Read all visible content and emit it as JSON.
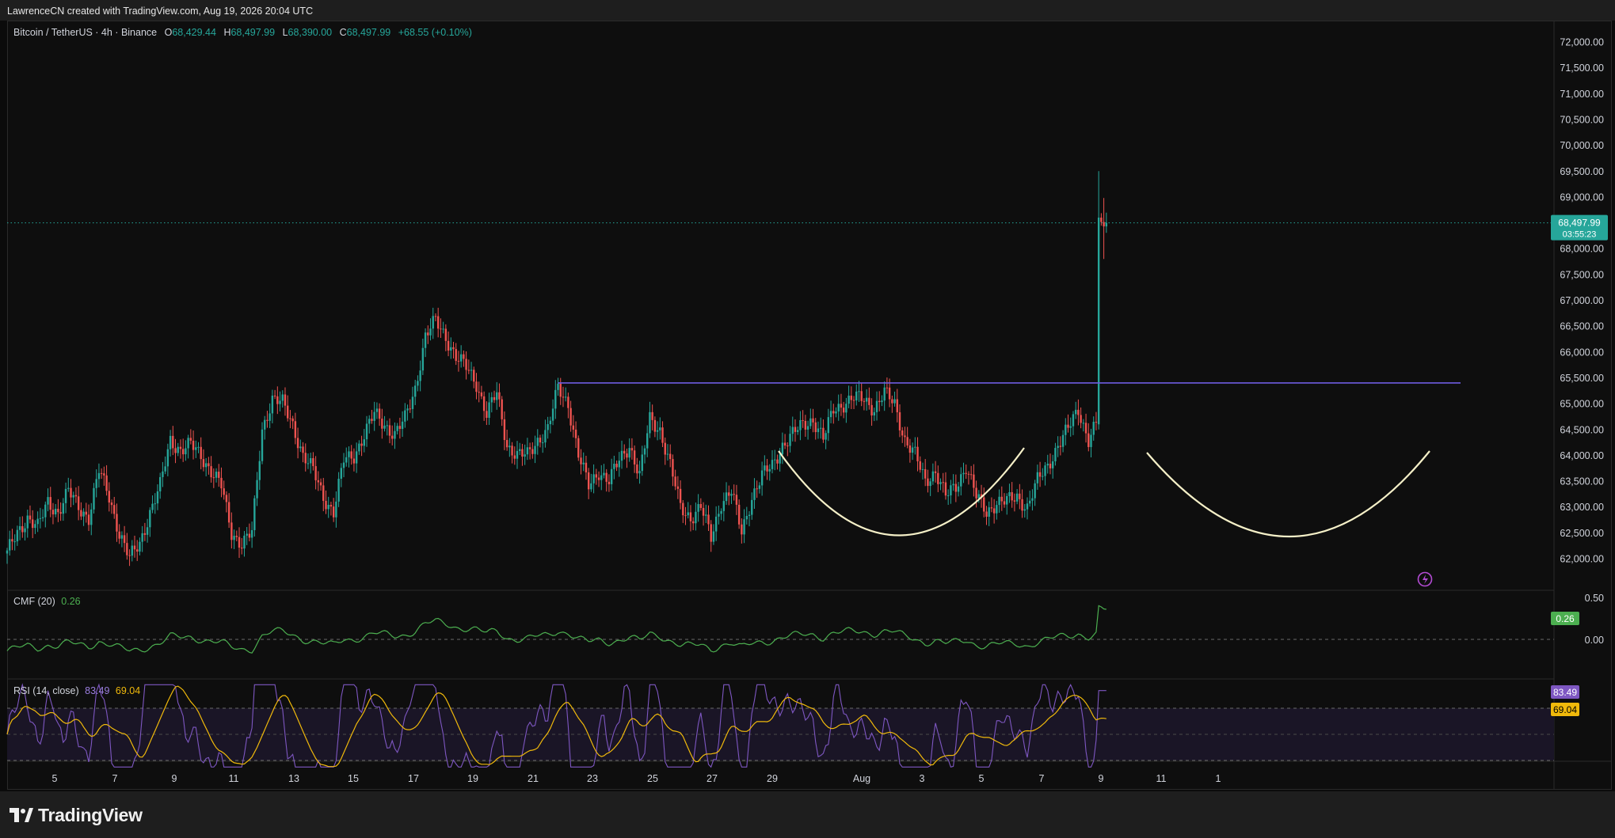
{
  "header": {
    "attribution": "LawrenceCN created with TradingView.com, Aug 19, 2026 20:04 UTC"
  },
  "legend": {
    "symbol": "Bitcoin / TetherUS · 4h · Binance",
    "open_label": "O",
    "open": "68,429.44",
    "high_label": "H",
    "high": "68,497.99",
    "low_label": "L",
    "low": "68,390.00",
    "close_label": "C",
    "close": "68,497.99",
    "change": "+68.55 (+0.10%)"
  },
  "price_tag": {
    "price": "68,497.99",
    "countdown": "03:55:23"
  },
  "indicators": {
    "cmf": {
      "label": "CMF (20)",
      "value": "0.26",
      "axis": [
        "0.50",
        "0.00"
      ],
      "tag": "0.26"
    },
    "rsi": {
      "label": "RSI (14, close)",
      "value": "83.49",
      "ma_value": "69.04",
      "tag_rsi": "83.49",
      "tag_ma": "69.04"
    }
  },
  "footer": {
    "brand": "TradingView"
  },
  "colors": {
    "up": "#26a69a",
    "down": "#ef5350",
    "cmf": "#4caf50",
    "rsi": "#7e57c2",
    "rsi_ma": "#f0b90b",
    "resistance": "#6f5ce0",
    "cup": "#f5f0c8"
  },
  "chart_data": {
    "type": "candlestick",
    "title": "Bitcoin / TetherUS · 4h · Binance",
    "ylim": [
      61600,
      72300
    ],
    "y_ticks": [
      "72,000.00",
      "71,500.00",
      "71,000.00",
      "70,500.00",
      "70,000.00",
      "69,500.00",
      "69,000.00",
      "68,500.00",
      "68,000.00",
      "67,500.00",
      "67,000.00",
      "66,500.00",
      "66,000.00",
      "65,500.00",
      "65,000.00",
      "64,500.00",
      "64,000.00",
      "63,500.00",
      "63,000.00",
      "62,500.00",
      "62,000.00"
    ],
    "x_ticks": [
      "5",
      "7",
      "9",
      "11",
      "13",
      "15",
      "17",
      "19",
      "21",
      "23",
      "25",
      "27",
      "29",
      "Aug",
      "3",
      "5",
      "7",
      "9",
      "11",
      "1"
    ],
    "close_path": [
      [
        0,
        62100
      ],
      [
        4,
        62500
      ],
      [
        8,
        62800
      ],
      [
        12,
        62600
      ],
      [
        16,
        63100
      ],
      [
        20,
        62900
      ],
      [
        24,
        63300
      ],
      [
        28,
        63000
      ],
      [
        32,
        62800
      ],
      [
        36,
        63700
      ],
      [
        40,
        63200
      ],
      [
        44,
        62500
      ],
      [
        48,
        62000
      ],
      [
        52,
        62300
      ],
      [
        56,
        62900
      ],
      [
        60,
        63400
      ],
      [
        64,
        64300
      ],
      [
        68,
        64100
      ],
      [
        72,
        64200
      ],
      [
        76,
        64000
      ],
      [
        80,
        63700
      ],
      [
        84,
        63400
      ],
      [
        88,
        62500
      ],
      [
        92,
        62300
      ],
      [
        96,
        62500
      ],
      [
        100,
        64500
      ],
      [
        104,
        65100
      ],
      [
        108,
        65000
      ],
      [
        112,
        64600
      ],
      [
        116,
        64000
      ],
      [
        120,
        63700
      ],
      [
        124,
        63200
      ],
      [
        128,
        62900
      ],
      [
        132,
        63900
      ],
      [
        136,
        64000
      ],
      [
        140,
        64400
      ],
      [
        144,
        64800
      ],
      [
        148,
        64600
      ],
      [
        152,
        64400
      ],
      [
        156,
        64700
      ],
      [
        160,
        65300
      ],
      [
        164,
        66300
      ],
      [
        168,
        66600
      ],
      [
        172,
        66300
      ],
      [
        176,
        65900
      ],
      [
        180,
        65700
      ],
      [
        184,
        65400
      ],
      [
        188,
        64800
      ],
      [
        192,
        65200
      ],
      [
        196,
        64200
      ],
      [
        200,
        64000
      ],
      [
        204,
        64000
      ],
      [
        208,
        64300
      ],
      [
        212,
        64500
      ],
      [
        216,
        65300
      ],
      [
        220,
        65000
      ],
      [
        224,
        64000
      ],
      [
        228,
        63400
      ],
      [
        232,
        63700
      ],
      [
        236,
        63500
      ],
      [
        240,
        63900
      ],
      [
        244,
        64200
      ],
      [
        248,
        63600
      ],
      [
        252,
        64700
      ],
      [
        256,
        64500
      ],
      [
        260,
        63800
      ],
      [
        264,
        63000
      ],
      [
        268,
        62800
      ],
      [
        272,
        63000
      ],
      [
        276,
        62400
      ],
      [
        280,
        63100
      ],
      [
        284,
        63300
      ],
      [
        288,
        62500
      ],
      [
        292,
        63200
      ],
      [
        296,
        63600
      ],
      [
        300,
        63800
      ],
      [
        304,
        64200
      ],
      [
        308,
        64400
      ],
      [
        312,
        64600
      ],
      [
        316,
        64700
      ],
      [
        320,
        64300
      ],
      [
        324,
        64900
      ],
      [
        328,
        65000
      ],
      [
        332,
        65100
      ],
      [
        336,
        65100
      ],
      [
        340,
        64900
      ],
      [
        344,
        65200
      ],
      [
        348,
        65000
      ],
      [
        352,
        64300
      ],
      [
        356,
        64000
      ],
      [
        360,
        63500
      ],
      [
        364,
        63700
      ],
      [
        368,
        63200
      ],
      [
        372,
        63400
      ],
      [
        376,
        63800
      ],
      [
        380,
        63200
      ],
      [
        384,
        62900
      ],
      [
        388,
        63100
      ],
      [
        392,
        63100
      ],
      [
        396,
        63200
      ],
      [
        400,
        63000
      ],
      [
        404,
        63500
      ],
      [
        408,
        63800
      ],
      [
        412,
        64200
      ],
      [
        416,
        64500
      ],
      [
        420,
        64900
      ],
      [
        424,
        64300
      ],
      [
        427,
        64600
      ],
      [
        428,
        68600
      ],
      [
        430,
        68430
      ],
      [
        431,
        68498
      ]
    ],
    "resistance_level": 65400,
    "last_price": 68497.99
  }
}
